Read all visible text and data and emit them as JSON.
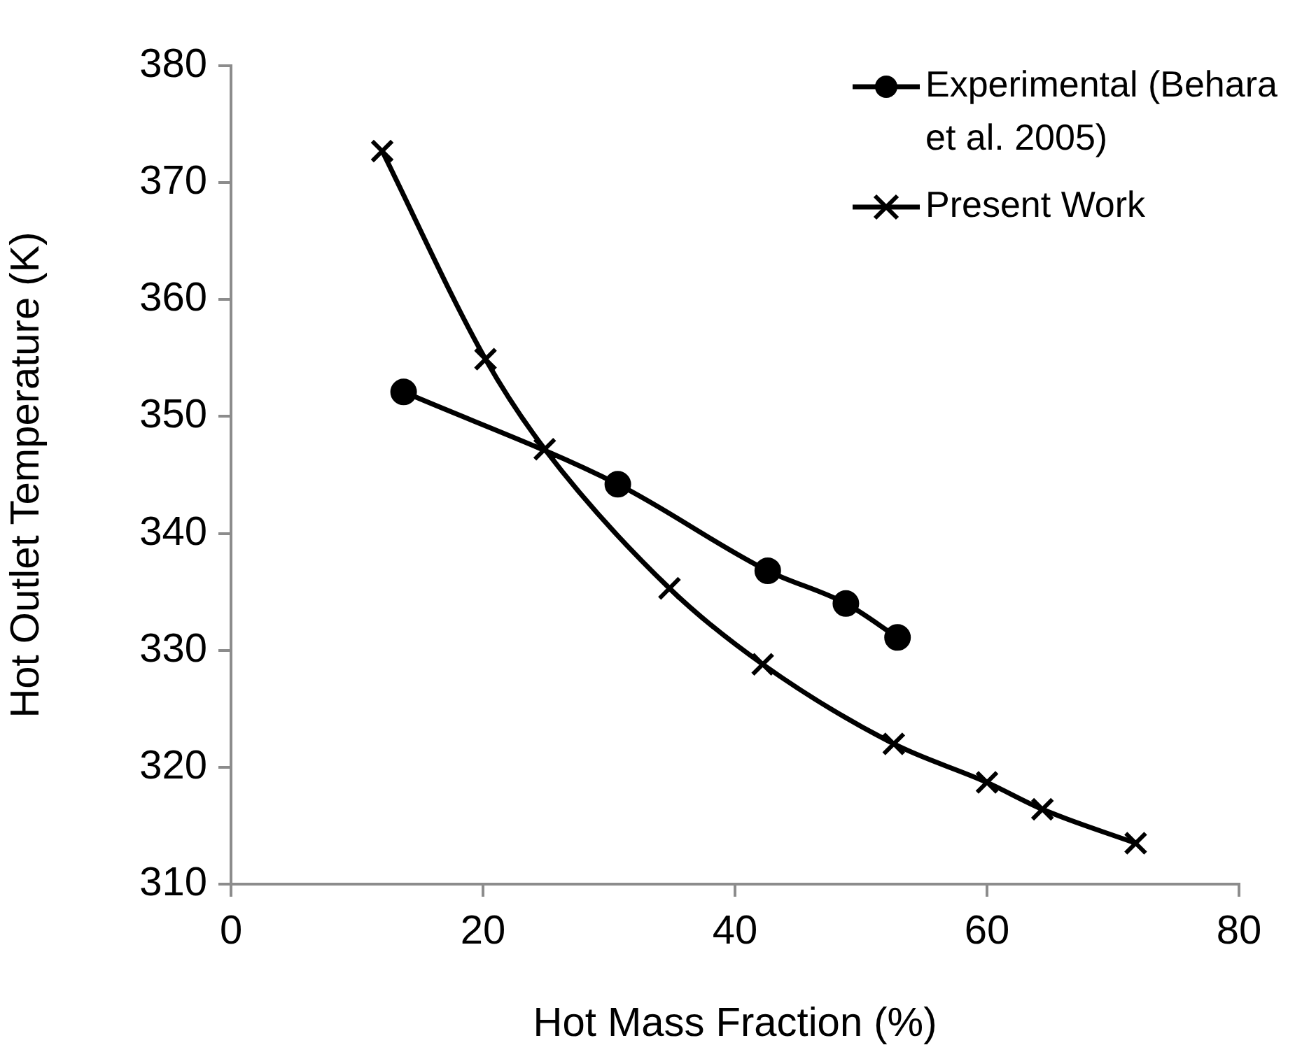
{
  "chart_data": {
    "type": "line",
    "xlabel": "Hot Mass Fraction (%)",
    "ylabel": "Hot Outlet Temperature (K)",
    "xlim": [
      0,
      80
    ],
    "xticks": [
      0,
      20,
      40,
      60,
      80
    ],
    "ylim": [
      310,
      380
    ],
    "yticks": [
      310,
      320,
      330,
      340,
      350,
      360,
      370,
      380
    ],
    "grid": false,
    "legend": "top right",
    "line_style": "solid",
    "series": [
      {
        "name": "Experimental (Behara et al. 2005)",
        "color": "#000000",
        "marker": "circle",
        "x": [
          13.7,
          30.7,
          42.6,
          48.8,
          52.9
        ],
        "values": [
          352.1,
          344.2,
          336.8,
          334.0,
          331.1
        ]
      },
      {
        "name": "Present Work",
        "color": "#000000",
        "marker": "cross",
        "x": [
          12.0,
          20.2,
          24.9,
          34.8,
          42.2,
          52.6,
          60.0,
          64.4,
          71.8
        ],
        "values": [
          372.7,
          354.9,
          347.2,
          335.3,
          328.8,
          322.0,
          318.7,
          316.4,
          313.5
        ]
      }
    ]
  }
}
